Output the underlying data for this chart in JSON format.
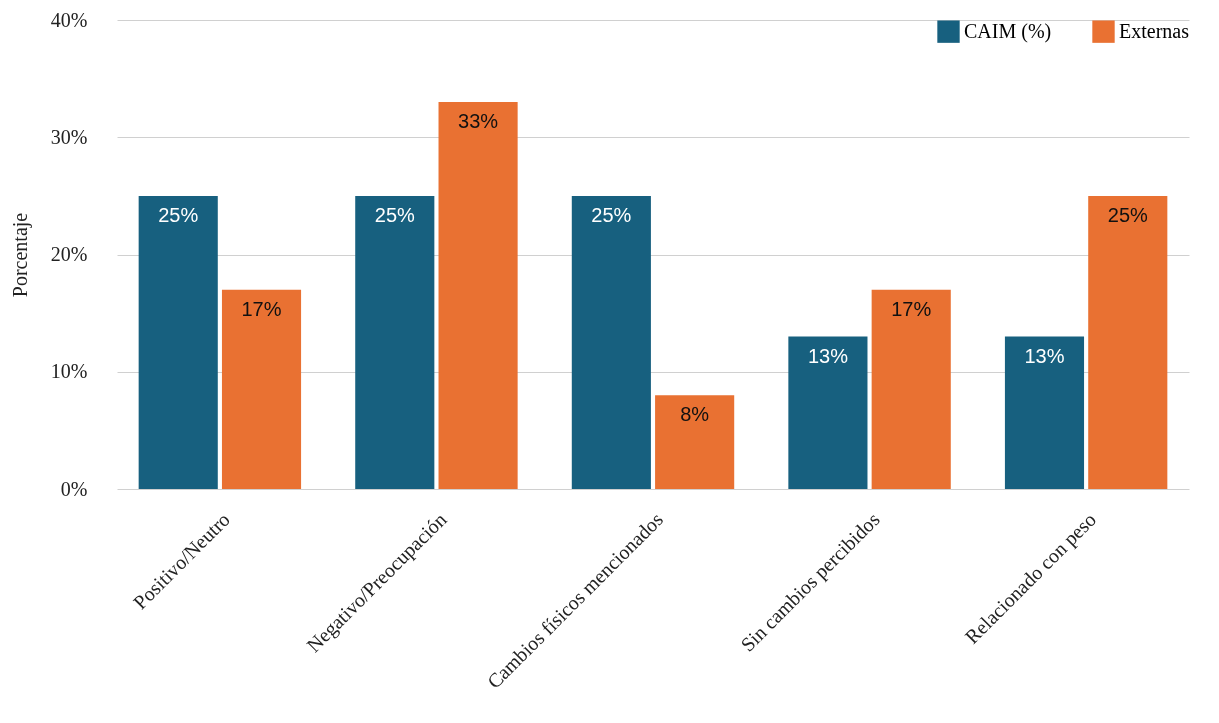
{
  "chart_data": {
    "type": "bar",
    "ylabel": "Porcentaje",
    "categories": [
      "Positivo/Neutro",
      "Negativo/Preocupación",
      "Cambios físicos mencionados",
      "Sin cambios percibidos",
      "Relacionado con peso"
    ],
    "series": [
      {
        "name": "CAIM (%)",
        "color": "#17607f",
        "values": [
          25,
          25,
          25,
          13,
          13
        ],
        "value_labels": [
          "25%",
          "25%",
          "25%",
          "13%",
          "13%"
        ]
      },
      {
        "name": "Externas",
        "color": "#e97132",
        "values": [
          17,
          33,
          8,
          17,
          25
        ],
        "value_labels": [
          "17%",
          "33%",
          "8%",
          "17%",
          "25%"
        ]
      }
    ],
    "ylim": [
      0,
      40
    ],
    "yticks": [
      {
        "value": 0,
        "label": "0%"
      },
      {
        "value": 10,
        "label": "10%"
      },
      {
        "value": 20,
        "label": "20%"
      },
      {
        "value": 30,
        "label": "30%"
      },
      {
        "value": 40,
        "label": "40%"
      }
    ],
    "grid": "y",
    "legend": "top right"
  }
}
